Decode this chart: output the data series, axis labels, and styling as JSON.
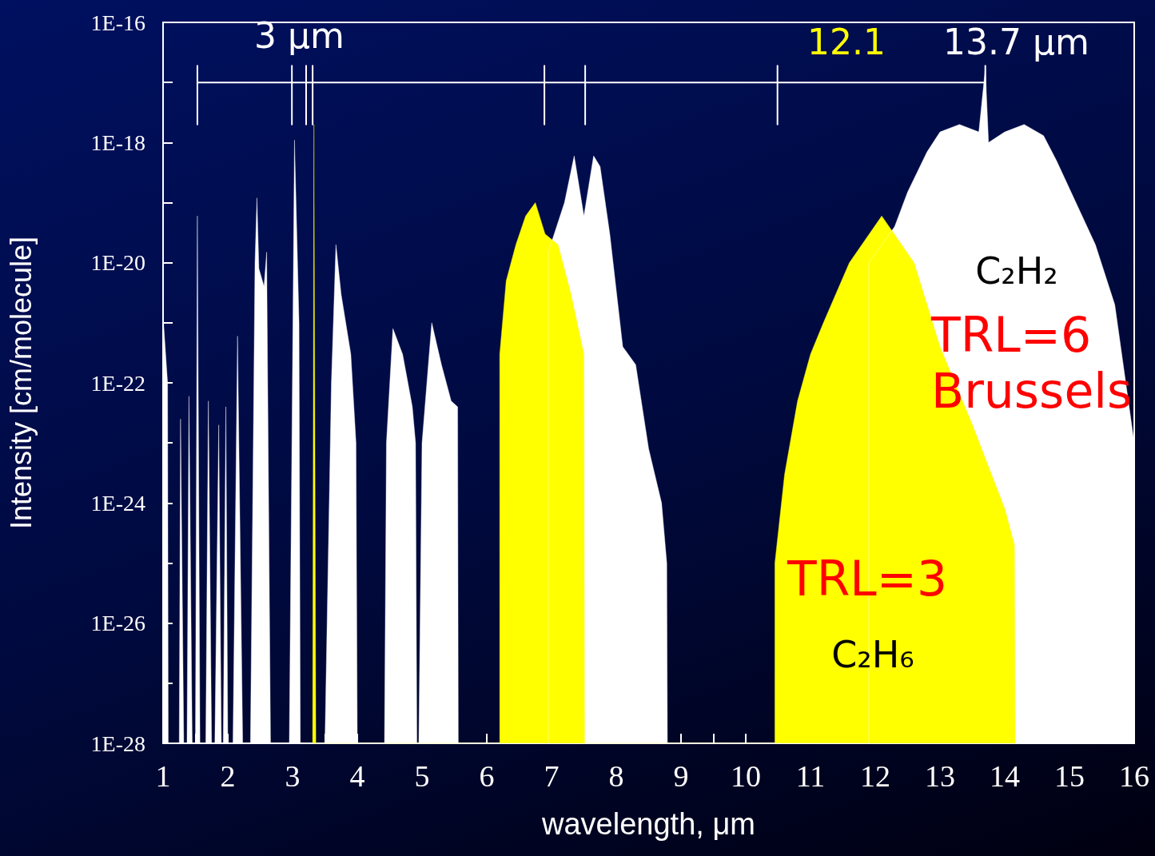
{
  "chart_data": {
    "type": "area",
    "xlabel": "wavelength, μm",
    "ylabel": "Intensity [cm/molecule]",
    "xlim": [
      1,
      16
    ],
    "xticks": [
      1,
      {
        "value": 1.5,
        "label": null
      },
      2,
      {
        "value": 2.5,
        "label": null
      },
      3,
      {
        "value": 3.5,
        "label": null
      },
      4,
      {
        "value": 4.5,
        "label": null
      },
      5,
      {
        "value": 5.5,
        "label": null
      },
      6,
      {
        "value": 6.5,
        "label": null
      },
      7,
      {
        "value": 7.5,
        "label": null
      },
      8,
      {
        "value": 8.5,
        "label": null
      },
      9,
      {
        "value": 9.5,
        "label": null
      },
      10,
      {
        "value": 10.5,
        "label": null
      },
      11,
      {
        "value": 11.5,
        "label": null
      },
      12,
      {
        "value": 12.5,
        "label": null
      },
      13,
      {
        "value": 13.5,
        "label": null
      },
      14,
      {
        "value": 14.5,
        "label": null
      },
      15,
      {
        "value": 15.5,
        "label": null
      },
      16
    ],
    "ylim": [
      1e-28,
      1e-16
    ],
    "log": true,
    "yticks": [
      {
        "value": 1e-28,
        "label": "1E-28"
      },
      {
        "value": 1e-27,
        "label": null
      },
      {
        "value": 1e-26,
        "label": "1E-26"
      },
      {
        "value": 1e-25,
        "label": null
      },
      {
        "value": 1e-24,
        "label": "1E-24"
      },
      {
        "value": 1e-23,
        "label": null
      },
      {
        "value": 1e-22,
        "label": "1E-22"
      },
      {
        "value": 1e-21,
        "label": null
      },
      {
        "value": 1e-20,
        "label": "1E-20"
      },
      {
        "value": 1e-19,
        "label": null
      },
      {
        "value": 1e-18,
        "label": "1E-18"
      },
      {
        "value": 1e-17,
        "label": null
      },
      {
        "value": 1e-16,
        "label": "1E-16"
      }
    ],
    "grid": false,
    "legend": false,
    "marker": "none",
    "series": [
      {
        "name": "C₂H₂",
        "color": "#ffffff",
        "x": [
          1.0,
          1.07,
          1.08,
          1.25,
          1.27,
          1.32,
          1.37,
          1.4,
          1.45,
          1.5,
          1.53,
          1.57,
          1.66,
          1.7,
          1.75,
          1.8,
          1.86,
          1.9,
          1.93,
          1.97,
          2.0,
          2.08,
          2.15,
          2.23,
          2.35,
          2.42,
          2.45,
          2.48,
          2.56,
          2.6,
          2.66,
          2.95,
          3.03,
          3.1,
          3.12,
          3.5,
          3.6,
          3.67,
          3.75,
          3.9,
          3.98,
          4.0,
          4.42,
          4.45,
          4.55,
          4.7,
          4.85,
          4.9,
          4.92,
          4.95,
          5.0,
          5.15,
          5.3,
          5.45,
          5.55,
          5.56,
          6.95,
          6.95,
          7.2,
          7.35,
          7.5,
          7.65,
          7.75,
          7.9,
          8.1,
          8.3,
          8.5,
          8.7,
          8.78,
          8.79,
          11.9,
          11.9,
          12.3,
          12.5,
          12.8,
          13.0,
          13.3,
          13.6,
          13.7,
          13.75,
          14.0,
          14.3,
          14.6,
          14.8,
          15.1,
          15.4,
          15.7,
          16.0
        ],
        "values": [
          1.3e-21,
          1e-22,
          1e-28,
          1e-28,
          2.5e-23,
          1e-28,
          1e-28,
          6e-23,
          1e-28,
          1e-28,
          6e-20,
          1e-28,
          1e-28,
          5e-23,
          1e-28,
          1e-28,
          2e-23,
          1e-28,
          1e-28,
          4e-23,
          1e-28,
          1e-28,
          6e-22,
          1e-28,
          1e-28,
          1e-20,
          1.2e-19,
          8e-21,
          4e-21,
          1.5e-20,
          1e-28,
          1e-28,
          1.1e-18,
          1e-21,
          1e-28,
          1e-28,
          1e-22,
          2e-20,
          3e-21,
          3e-22,
          1e-23,
          1e-28,
          1e-28,
          1e-23,
          8e-22,
          3e-22,
          4e-23,
          1e-23,
          1e-28,
          1e-28,
          1e-23,
          1e-21,
          2e-22,
          5e-23,
          4e-23,
          1e-28,
          1e-28,
          1.5e-20,
          1e-19,
          6e-19,
          6e-20,
          6e-19,
          4e-19,
          3e-20,
          4e-22,
          2e-22,
          8e-24,
          1e-24,
          1e-25,
          1e-28,
          1e-28,
          1e-20,
          4e-20,
          1.5e-19,
          7e-19,
          1.5e-18,
          2e-18,
          1.5e-18,
          1.7e-17,
          1e-18,
          1.5e-18,
          2e-18,
          1.3e-18,
          5e-19,
          1e-19,
          2e-20,
          2e-21,
          1e-23
        ]
      },
      {
        "name": "C₂H₆",
        "color": "#ffff00",
        "x": [
          3.31,
          3.33,
          3.36,
          6.2,
          6.2,
          6.3,
          6.45,
          6.6,
          6.75,
          6.9,
          7.1,
          7.3,
          7.5,
          7.51,
          10.45,
          10.45,
          10.6,
          10.8,
          11.0,
          11.2,
          11.6,
          12.1,
          12.6,
          13.0,
          13.5,
          14.0,
          14.15,
          14.16
        ],
        "values": [
          1e-28,
          2e-18,
          1e-28,
          1e-28,
          3e-22,
          5e-21,
          2e-20,
          6e-20,
          1e-19,
          3e-20,
          2e-20,
          3e-21,
          3e-22,
          1e-28,
          1e-28,
          1e-25,
          3e-24,
          5e-23,
          3e-22,
          1e-21,
          1e-20,
          6e-20,
          1e-20,
          4e-22,
          2e-23,
          8e-25,
          2e-25,
          1e-28
        ]
      },
      {
        "type": "line",
        "color": "#ffffff",
        "x": [
          1.53,
          1.53,
          1.53,
          1.53,
          2.99,
          2.99,
          2.99,
          2.99,
          3.21,
          3.21,
          3.21,
          3.21,
          3.31,
          3.31,
          3.31,
          3.31,
          6.89,
          6.89,
          6.89,
          6.89,
          7.52,
          7.52,
          7.52,
          7.52,
          10.49,
          10.49,
          10.49,
          10.49,
          13.7,
          13.7,
          13.7,
          13.7
        ],
        "values": [
          1e-17,
          1.9e-17,
          2e-18,
          1e-17,
          1e-17,
          1.9e-17,
          2e-18,
          1e-17,
          1e-17,
          1.9e-17,
          2e-18,
          1e-17,
          1e-17,
          1.9e-17,
          2e-18,
          1e-17,
          1e-17,
          1.9e-17,
          2e-18,
          1e-17,
          1e-17,
          1.9e-17,
          2e-18,
          1e-17,
          1e-17,
          1.9e-17,
          2e-18,
          1e-17,
          1e-17,
          1.9e-17,
          2e-18,
          1e-17
        ]
      }
    ],
    "annotations": [
      "3 μm",
      "12.1",
      "13.7 μm",
      "TRL=6 Brussels",
      "TRL=3"
    ]
  }
}
